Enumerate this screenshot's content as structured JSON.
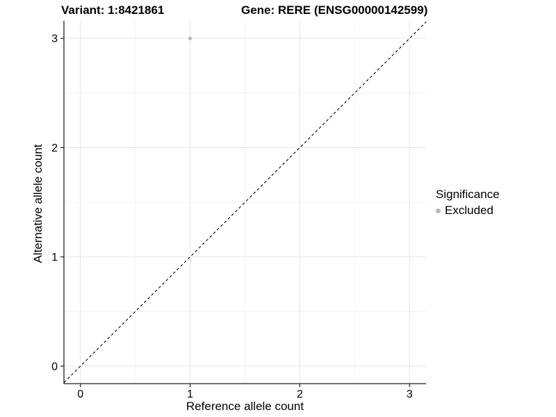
{
  "header": {
    "variant_title": "Variant: 1:8421861",
    "gene_title": "Gene: RERE (ENSG00000142599)"
  },
  "chart_data": {
    "type": "scatter",
    "title_left": "Variant: 1:8421861",
    "title_right": "Gene: RERE (ENSG00000142599)",
    "xlabel": "Reference allele count",
    "ylabel": "Alternative allele count",
    "xlim": [
      -0.15,
      3.15
    ],
    "ylim": [
      -0.16,
      3.16
    ],
    "x_ticks": [
      0,
      1,
      2,
      3
    ],
    "y_ticks": [
      0,
      1,
      2,
      3
    ],
    "x_minor_gridlines": [
      0.5,
      1.5,
      2.5
    ],
    "y_minor_gridlines": [
      0.5,
      1.5,
      2.5
    ],
    "grid": true,
    "series": [
      {
        "name": "Excluded",
        "points": [
          {
            "x": 1,
            "y": 3
          }
        ]
      }
    ],
    "reference_line": {
      "kind": "identity",
      "equation": "y = x",
      "style": "dashed",
      "color": "#000000"
    },
    "legend": {
      "title": "Significance",
      "position": "right",
      "items": [
        {
          "label": "Excluded",
          "color": "#b8b8b8"
        }
      ]
    },
    "colors": {
      "point": "#b8b8b8",
      "grid_major": "#e5e5e5",
      "grid_minor": "#f2f2f2",
      "axis_line": "#1f1f1f",
      "tick_label": "#000000",
      "background": "#ffffff"
    }
  }
}
